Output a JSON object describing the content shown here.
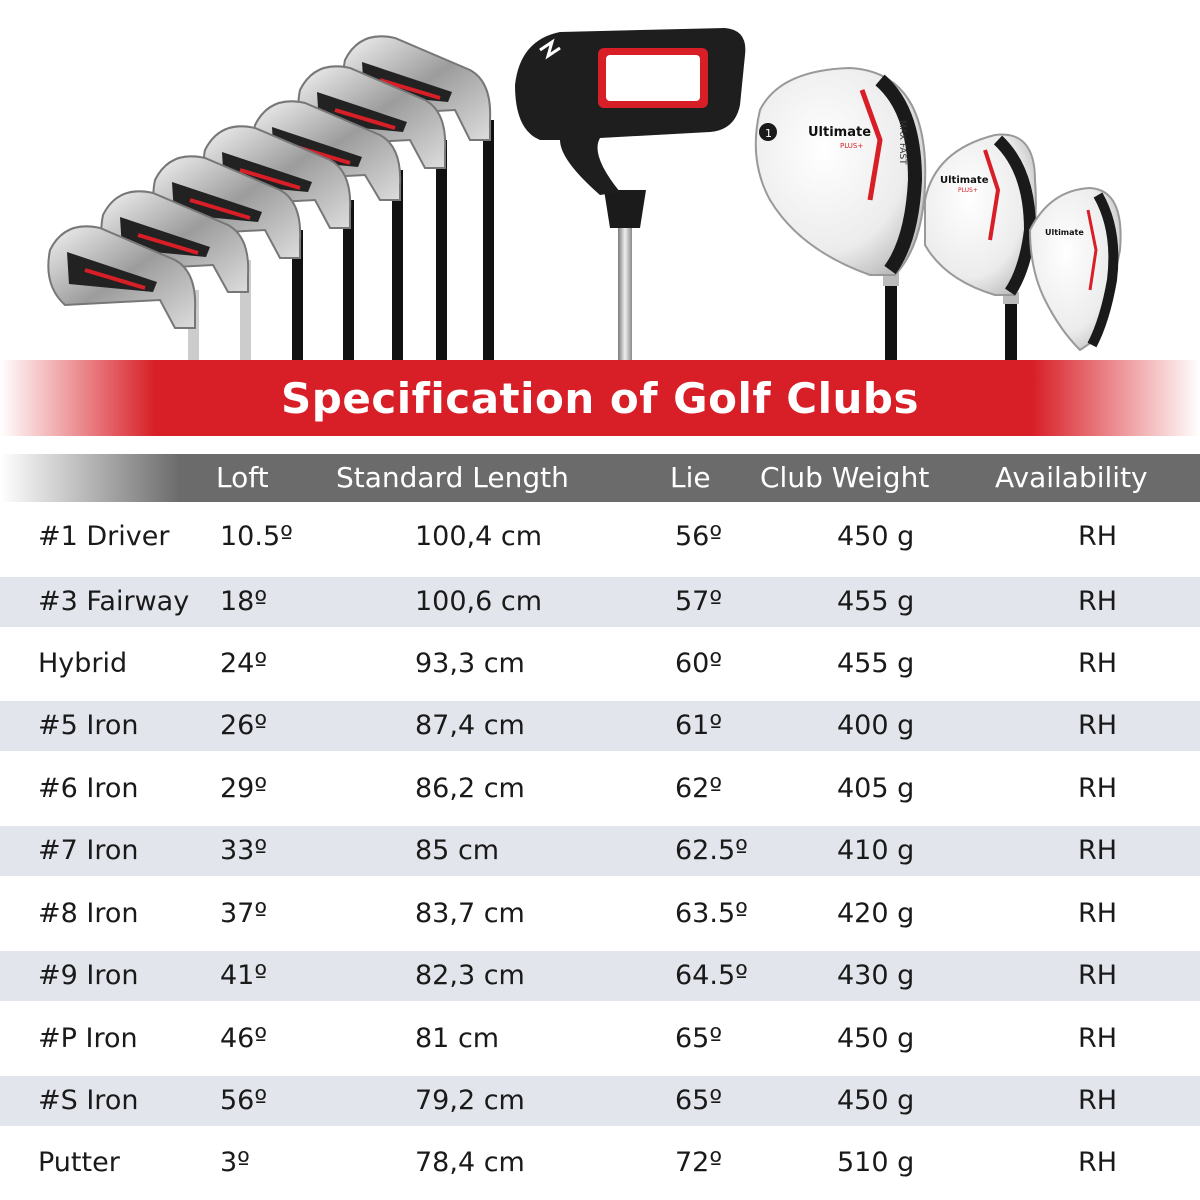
{
  "banner": {
    "title": "Specification of Golf Clubs"
  },
  "table": {
    "headers": [
      "Loft",
      "Standard Length",
      "Lie",
      "Club Weight",
      "Availability"
    ],
    "rows": [
      {
        "club": "#1 Driver",
        "loft": "10.5º",
        "length": "100,4 cm",
        "lie": "56º",
        "weight": "450 g",
        "availability": "RH"
      },
      {
        "club": "#3 Fairway",
        "loft": "18º",
        "length": "100,6 cm",
        "lie": "57º",
        "weight": "455 g",
        "availability": "RH"
      },
      {
        "club": "Hybrid",
        "loft": "24º",
        "length": "93,3 cm",
        "lie": "60º",
        "weight": "455 g",
        "availability": "RH"
      },
      {
        "club": "#5 Iron",
        "loft": "26º",
        "length": "87,4 cm",
        "lie": "61º",
        "weight": "400 g",
        "availability": "RH"
      },
      {
        "club": "#6 Iron",
        "loft": "29º",
        "length": "86,2 cm",
        "lie": "62º",
        "weight": "405 g",
        "availability": "RH"
      },
      {
        "club": "#7 Iron",
        "loft": "33º",
        "length": "85 cm",
        "lie": "62.5º",
        "weight": "410 g",
        "availability": "RH"
      },
      {
        "club": "#8 Iron",
        "loft": "37º",
        "length": "83,7 cm",
        "lie": "63.5º",
        "weight": "420 g",
        "availability": "RH"
      },
      {
        "club": "#9 Iron",
        "loft": "41º",
        "length": "82,3 cm",
        "lie": "64.5º",
        "weight": "430 g",
        "availability": "RH"
      },
      {
        "club": "#P Iron",
        "loft": "46º",
        "length": "81 cm",
        "lie": "65º",
        "weight": "450 g",
        "availability": "RH"
      },
      {
        "club": "#S Iron",
        "loft": "56º",
        "length": "79,2 cm",
        "lie": "65º",
        "weight": "450 g",
        "availability": "RH"
      },
      {
        "club": "Putter",
        "loft": "3º",
        "length": "78,4 cm",
        "lie": "72º",
        "weight": "510 g",
        "availability": "RH"
      }
    ]
  },
  "product": {
    "brand_mark": "Ultimate",
    "brand_sub": "PLUS+",
    "model_mark": "MAX FAST",
    "driver_number": "1",
    "colors": {
      "accent_red": "#d81e26",
      "header_gray": "#6b6b6b",
      "row_shade": "#e3e5ec"
    }
  }
}
